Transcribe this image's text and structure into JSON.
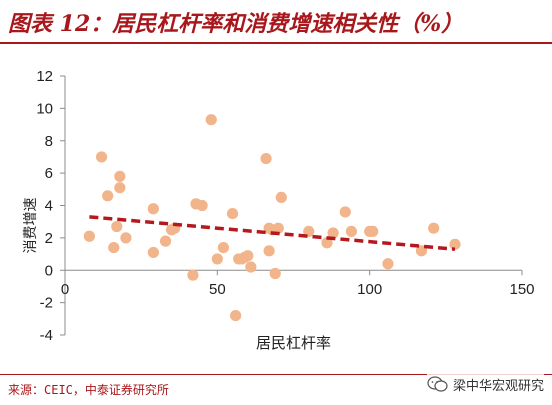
{
  "title": "图表 12：居民杠杆率和消费增速相关性（%）",
  "source": "来源：CEIC，中泰证券研究所",
  "watermark": "梁中华宏观研究",
  "colors": {
    "accent": "#a8171b",
    "points": "#f2b48a",
    "trend": "#b5191d"
  },
  "chart_data": {
    "type": "scatter",
    "xlabel": "居民杠杆率",
    "ylabel": "消费增速",
    "xlim": [
      0,
      150
    ],
    "ylim": [
      -4,
      12
    ],
    "xticks": [
      "0",
      "50",
      "100",
      "150"
    ],
    "yticks": [
      "-4",
      "-2",
      "0",
      "2",
      "4",
      "6",
      "8",
      "10",
      "12"
    ],
    "grid": false,
    "trendline": {
      "style": "dashed",
      "from": [
        8,
        3.3
      ],
      "to": [
        128,
        1.3
      ]
    },
    "points": [
      [
        8,
        2.1
      ],
      [
        12,
        7.0
      ],
      [
        14,
        4.6
      ],
      [
        16,
        1.4
      ],
      [
        17,
        2.7
      ],
      [
        18,
        5.8
      ],
      [
        18,
        5.1
      ],
      [
        20,
        2.0
      ],
      [
        29,
        3.8
      ],
      [
        29,
        1.1
      ],
      [
        33,
        1.8
      ],
      [
        35,
        2.5
      ],
      [
        36,
        2.6
      ],
      [
        42,
        -0.3
      ],
      [
        43,
        4.1
      ],
      [
        45,
        4.0
      ],
      [
        48,
        9.3
      ],
      [
        50,
        0.7
      ],
      [
        52,
        1.4
      ],
      [
        55,
        3.5
      ],
      [
        56,
        -2.8
      ],
      [
        57,
        0.7
      ],
      [
        58,
        0.7
      ],
      [
        59,
        0.8
      ],
      [
        60,
        0.9
      ],
      [
        61,
        0.2
      ],
      [
        66,
        6.9
      ],
      [
        67,
        2.6
      ],
      [
        67,
        1.2
      ],
      [
        68,
        2.5
      ],
      [
        69,
        -0.2
      ],
      [
        70,
        2.6
      ],
      [
        71,
        4.5
      ],
      [
        80,
        2.4
      ],
      [
        86,
        1.7
      ],
      [
        88,
        2.3
      ],
      [
        92,
        3.6
      ],
      [
        94,
        2.4
      ],
      [
        100,
        2.4
      ],
      [
        101,
        2.4
      ],
      [
        106,
        0.4
      ],
      [
        117,
        1.2
      ],
      [
        121,
        2.6
      ],
      [
        128,
        1.6
      ]
    ]
  }
}
